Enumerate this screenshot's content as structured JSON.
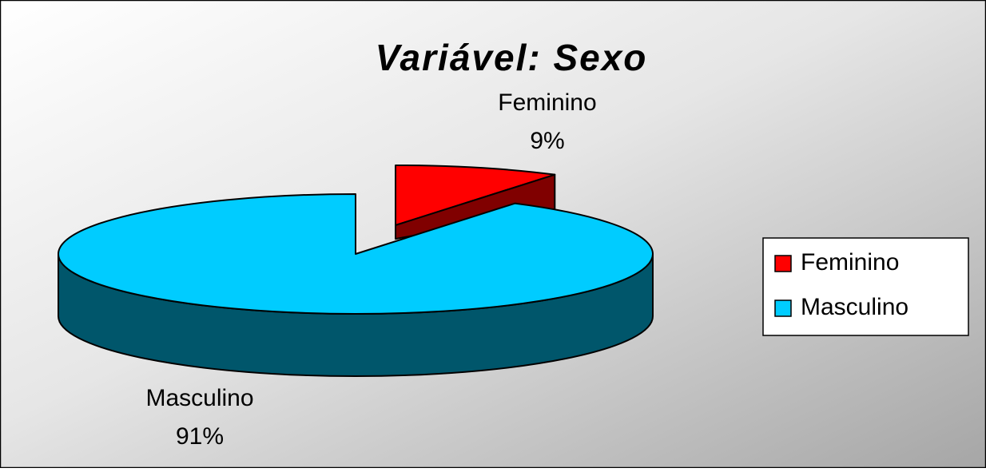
{
  "chart_data": {
    "type": "pie",
    "title": "Variável: Sexo",
    "categories": [
      "Feminino",
      "Masculino"
    ],
    "values": [
      9,
      91
    ],
    "value_labels": [
      "9%",
      "91%"
    ],
    "series": [
      {
        "name": "Feminino",
        "color": "#ff0000"
      },
      {
        "name": "Masculino",
        "color": "#00ccff"
      }
    ],
    "legend": "right",
    "three_d": true
  }
}
